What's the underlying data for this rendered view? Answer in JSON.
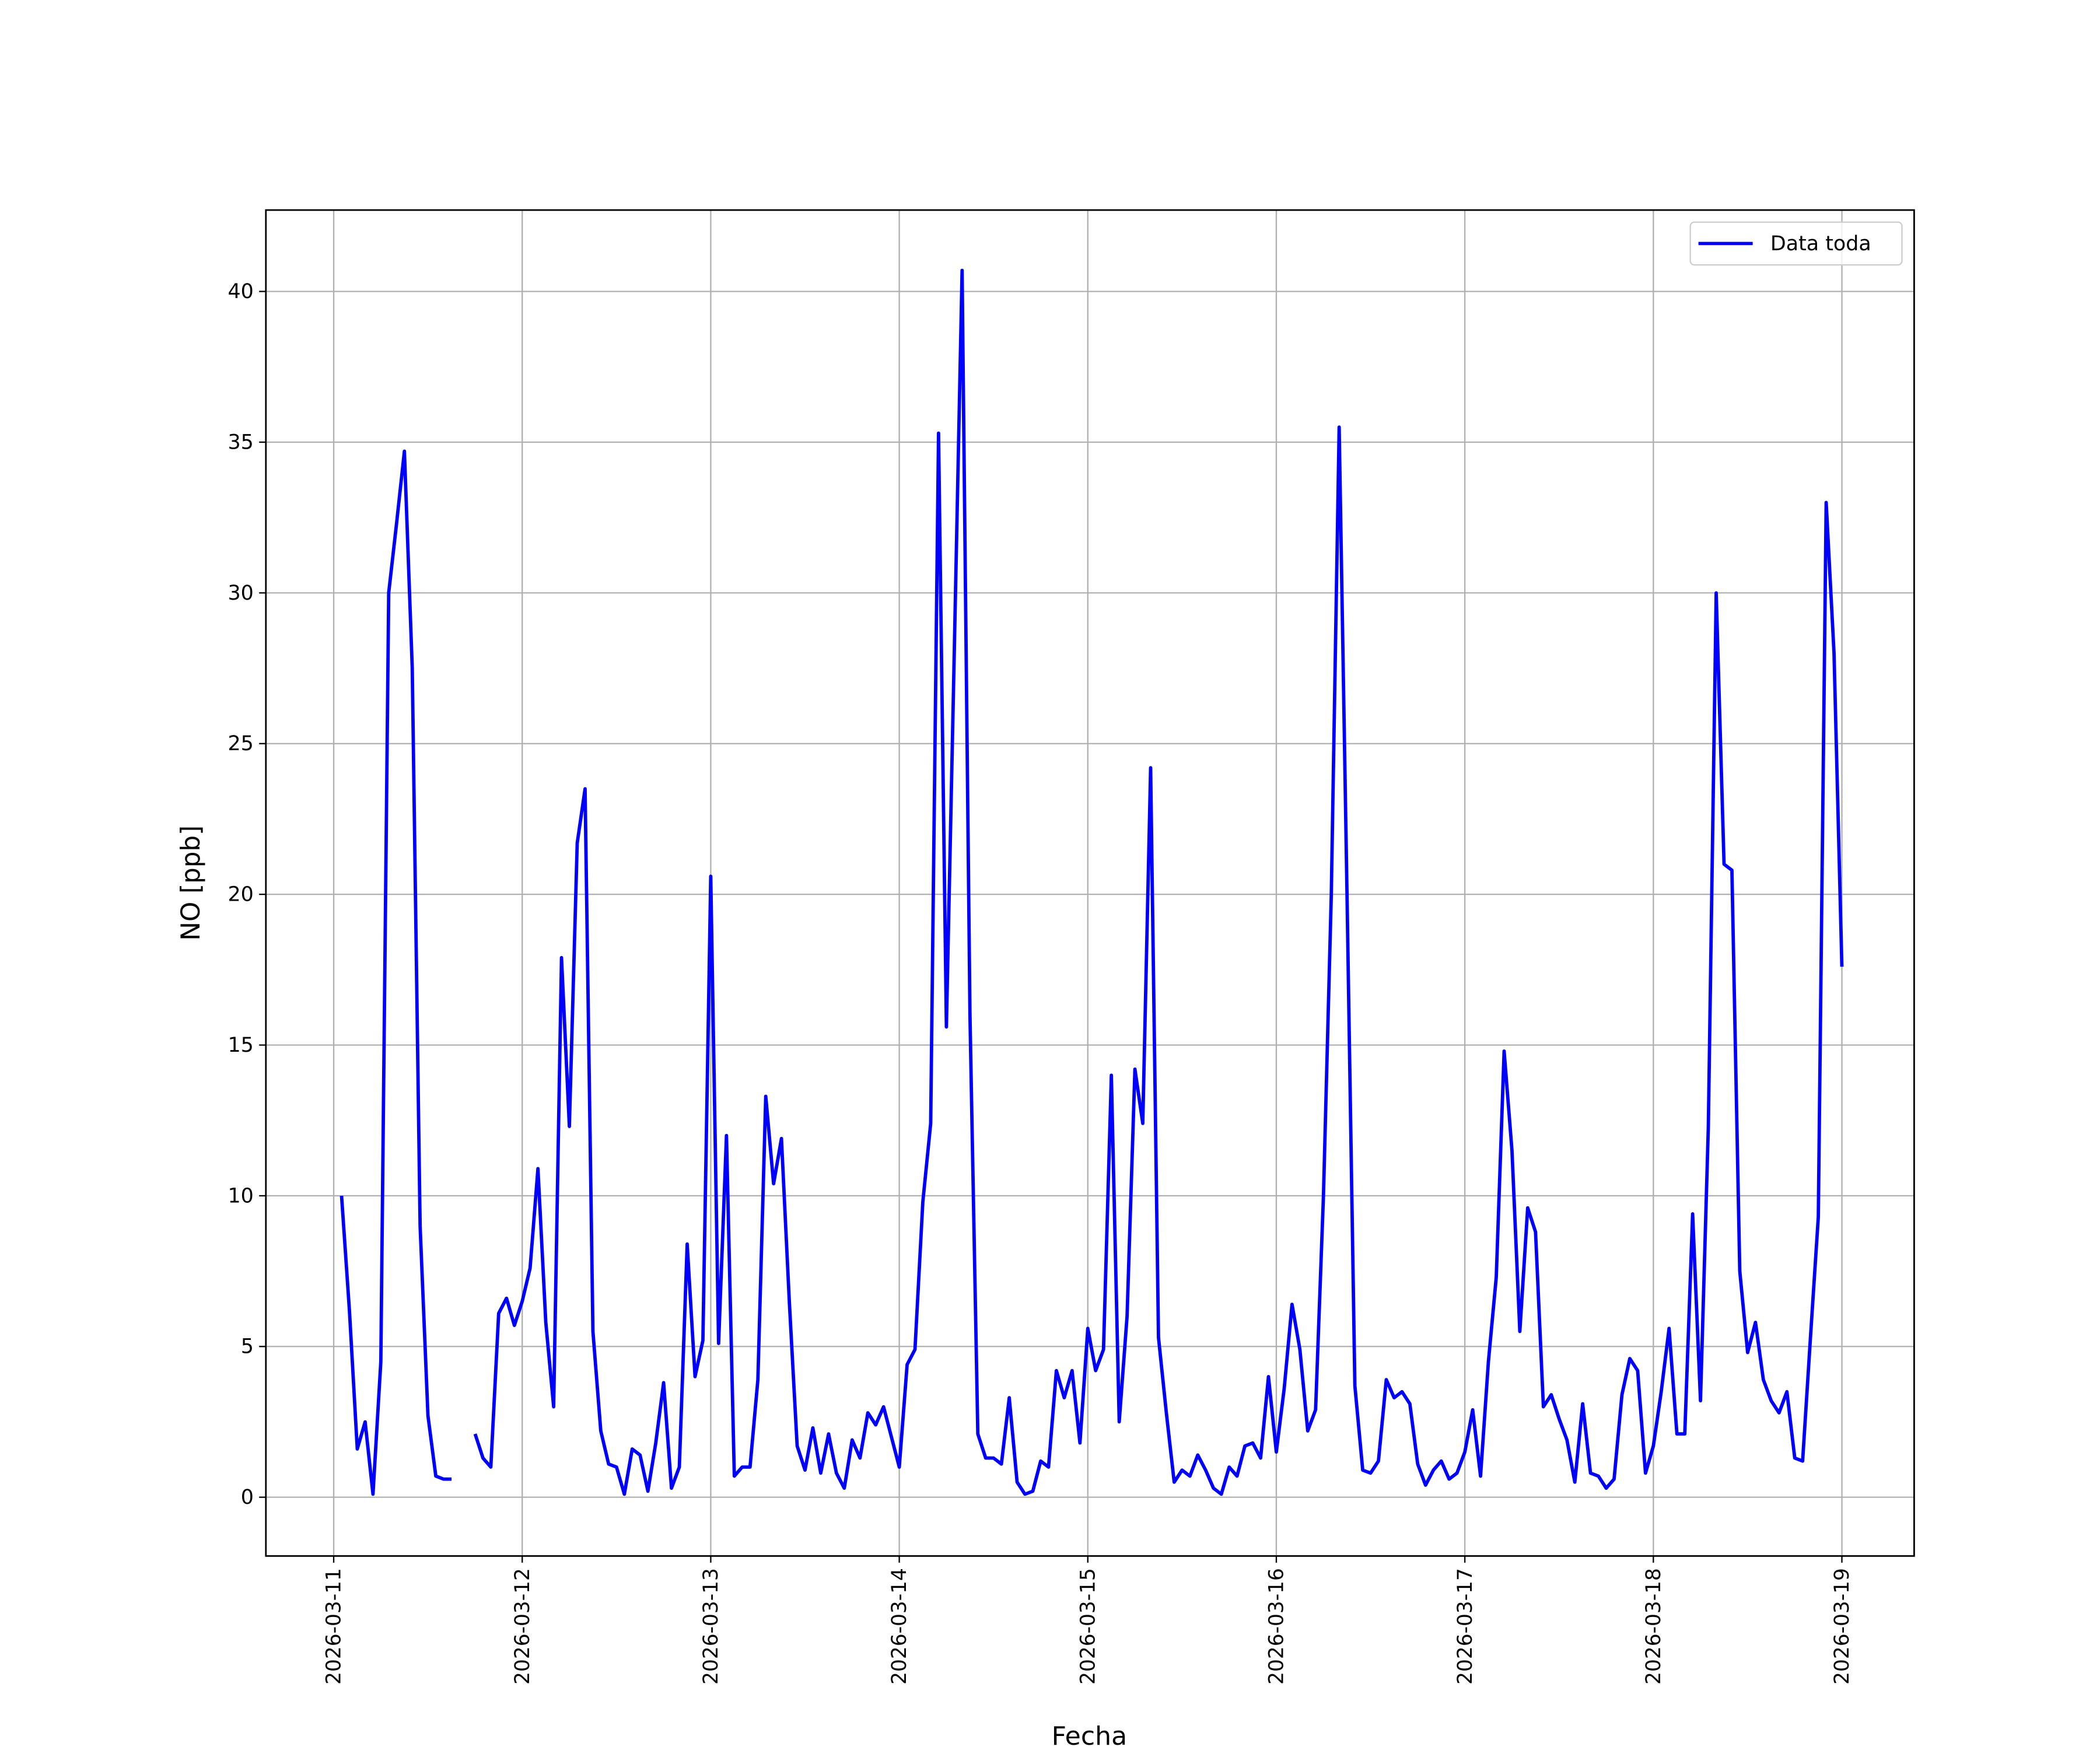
{
  "chart_data": {
    "type": "line",
    "xlabel": "Fecha",
    "ylabel": "NO [ppb]",
    "x": [
      "2026-03-11 01:00",
      "2026-03-11 02:00",
      "2026-03-11 03:00",
      "2026-03-11 04:00",
      "2026-03-11 05:00",
      "2026-03-11 06:00",
      "2026-03-11 07:00",
      "2026-03-11 08:00",
      "2026-03-11 09:00",
      "2026-03-11 10:00",
      "2026-03-11 11:00",
      "2026-03-11 12:00",
      "2026-03-11 13:00",
      "2026-03-11 14:00",
      "2026-03-11 15:00",
      "2026-03-11 16:00",
      "2026-03-11 17:00",
      "2026-03-11 18:00",
      "2026-03-11 19:00",
      "2026-03-11 20:00",
      "2026-03-11 21:00",
      "2026-03-11 22:00",
      "2026-03-11 23:00",
      "2026-03-12 00:00",
      "2026-03-12 01:00",
      "2026-03-12 02:00",
      "2026-03-12 03:00",
      "2026-03-12 04:00",
      "2026-03-12 05:00",
      "2026-03-12 06:00",
      "2026-03-12 07:00",
      "2026-03-12 08:00",
      "2026-03-12 09:00",
      "2026-03-12 10:00",
      "2026-03-12 11:00",
      "2026-03-12 12:00",
      "2026-03-12 13:00",
      "2026-03-12 14:00",
      "2026-03-12 15:00",
      "2026-03-12 16:00",
      "2026-03-12 17:00",
      "2026-03-12 18:00",
      "2026-03-12 19:00",
      "2026-03-12 20:00",
      "2026-03-12 21:00",
      "2026-03-12 22:00",
      "2026-03-12 23:00",
      "2026-03-13 00:00",
      "2026-03-13 01:00",
      "2026-03-13 02:00",
      "2026-03-13 03:00",
      "2026-03-13 04:00",
      "2026-03-13 05:00",
      "2026-03-13 06:00",
      "2026-03-13 07:00",
      "2026-03-13 08:00",
      "2026-03-13 09:00",
      "2026-03-13 10:00",
      "2026-03-13 11:00",
      "2026-03-13 12:00",
      "2026-03-13 13:00",
      "2026-03-13 14:00",
      "2026-03-13 15:00",
      "2026-03-13 16:00",
      "2026-03-13 17:00",
      "2026-03-13 18:00",
      "2026-03-13 19:00",
      "2026-03-13 20:00",
      "2026-03-13 21:00",
      "2026-03-13 22:00",
      "2026-03-13 23:00",
      "2026-03-14 00:00",
      "2026-03-14 01:00",
      "2026-03-14 02:00",
      "2026-03-14 03:00",
      "2026-03-14 04:00",
      "2026-03-14 05:00",
      "2026-03-14 06:00",
      "2026-03-14 07:00",
      "2026-03-14 08:00",
      "2026-03-14 09:00",
      "2026-03-14 10:00",
      "2026-03-14 11:00",
      "2026-03-14 12:00",
      "2026-03-14 13:00",
      "2026-03-14 14:00",
      "2026-03-14 15:00",
      "2026-03-14 16:00",
      "2026-03-14 17:00",
      "2026-03-14 18:00",
      "2026-03-14 19:00",
      "2026-03-14 20:00",
      "2026-03-14 21:00",
      "2026-03-14 22:00",
      "2026-03-14 23:00",
      "2026-03-15 00:00",
      "2026-03-15 01:00",
      "2026-03-15 02:00",
      "2026-03-15 03:00",
      "2026-03-15 04:00",
      "2026-03-15 05:00",
      "2026-03-15 06:00",
      "2026-03-15 07:00",
      "2026-03-15 08:00",
      "2026-03-15 09:00",
      "2026-03-15 10:00",
      "2026-03-15 11:00",
      "2026-03-15 12:00",
      "2026-03-15 13:00",
      "2026-03-15 14:00",
      "2026-03-15 15:00",
      "2026-03-15 16:00",
      "2026-03-15 17:00",
      "2026-03-15 18:00",
      "2026-03-15 19:00",
      "2026-03-15 20:00",
      "2026-03-15 21:00",
      "2026-03-15 22:00",
      "2026-03-15 23:00",
      "2026-03-16 00:00",
      "2026-03-16 01:00",
      "2026-03-16 02:00",
      "2026-03-16 03:00",
      "2026-03-16 04:00",
      "2026-03-16 05:00",
      "2026-03-16 06:00",
      "2026-03-16 07:00",
      "2026-03-16 08:00",
      "2026-03-16 09:00",
      "2026-03-16 10:00",
      "2026-03-16 11:00",
      "2026-03-16 12:00",
      "2026-03-16 13:00",
      "2026-03-16 14:00",
      "2026-03-16 15:00",
      "2026-03-16 16:00",
      "2026-03-16 17:00",
      "2026-03-16 18:00",
      "2026-03-16 19:00",
      "2026-03-16 20:00",
      "2026-03-16 21:00",
      "2026-03-16 22:00",
      "2026-03-16 23:00",
      "2026-03-17 00:00",
      "2026-03-17 01:00",
      "2026-03-17 02:00",
      "2026-03-17 03:00",
      "2026-03-17 04:00",
      "2026-03-17 05:00",
      "2026-03-17 06:00",
      "2026-03-17 07:00",
      "2026-03-17 08:00",
      "2026-03-17 09:00",
      "2026-03-17 10:00",
      "2026-03-17 11:00",
      "2026-03-17 12:00",
      "2026-03-17 13:00",
      "2026-03-17 14:00",
      "2026-03-17 15:00",
      "2026-03-17 16:00",
      "2026-03-17 17:00",
      "2026-03-17 18:00",
      "2026-03-17 19:00",
      "2026-03-17 20:00",
      "2026-03-17 21:00",
      "2026-03-17 22:00",
      "2026-03-17 23:00",
      "2026-03-18 00:00",
      "2026-03-18 01:00",
      "2026-03-18 02:00",
      "2026-03-18 03:00",
      "2026-03-18 04:00",
      "2026-03-18 05:00",
      "2026-03-18 06:00",
      "2026-03-18 07:00",
      "2026-03-18 08:00",
      "2026-03-18 09:00",
      "2026-03-18 10:00",
      "2026-03-18 11:00",
      "2026-03-18 12:00",
      "2026-03-18 13:00",
      "2026-03-18 14:00",
      "2026-03-18 15:00",
      "2026-03-18 16:00",
      "2026-03-18 17:00",
      "2026-03-18 18:00",
      "2026-03-18 19:00",
      "2026-03-18 20:00",
      "2026-03-18 21:00",
      "2026-03-18 22:00",
      "2026-03-18 23:00",
      "2026-03-19 00:00"
    ],
    "series": [
      {
        "name": "Data toda",
        "color": "#0000ff",
        "values": [
          10.0,
          6.2,
          1.6,
          2.5,
          0.1,
          4.5,
          30.0,
          32.3,
          34.7,
          27.5,
          9.0,
          2.7,
          0.7,
          0.6,
          0.6,
          null,
          null,
          2.1,
          1.3,
          1.0,
          6.1,
          6.6,
          5.7,
          6.5,
          7.6,
          10.9,
          5.8,
          3.0,
          17.9,
          12.3,
          21.7,
          23.5,
          5.5,
          2.2,
          1.1,
          1.0,
          0.1,
          1.6,
          1.4,
          0.2,
          1.8,
          3.8,
          0.3,
          1.0,
          8.4,
          4.0,
          5.2,
          20.6,
          5.1,
          12.0,
          0.7,
          1.0,
          1.0,
          3.9,
          13.3,
          10.4,
          11.9,
          6.5,
          1.7,
          0.9,
          2.3,
          0.8,
          2.1,
          0.8,
          0.3,
          1.9,
          1.3,
          2.8,
          2.4,
          3.0,
          2.0,
          1.0,
          4.4,
          4.9,
          9.8,
          12.4,
          35.3,
          15.6,
          28.0,
          40.7,
          16.0,
          2.1,
          1.3,
          1.3,
          1.1,
          3.3,
          0.5,
          0.1,
          0.2,
          1.2,
          1.0,
          4.2,
          3.3,
          4.2,
          1.8,
          5.6,
          4.2,
          4.9,
          14.0,
          2.5,
          6.0,
          14.2,
          12.4,
          24.2,
          5.3,
          2.8,
          0.5,
          0.9,
          0.7,
          1.4,
          0.9,
          0.3,
          0.1,
          1.0,
          0.7,
          1.7,
          1.8,
          1.3,
          4.0,
          1.5,
          3.6,
          6.4,
          4.9,
          2.2,
          2.9,
          10.0,
          20.0,
          35.5,
          20.0,
          3.7,
          0.9,
          0.8,
          1.2,
          3.9,
          3.3,
          3.5,
          3.1,
          1.1,
          0.4,
          0.9,
          1.2,
          0.6,
          0.8,
          1.5,
          2.9,
          0.7,
          4.5,
          7.3,
          14.8,
          11.5,
          5.5,
          9.6,
          8.8,
          3.0,
          3.4,
          2.6,
          1.9,
          0.5,
          3.1,
          0.8,
          0.7,
          0.3,
          0.6,
          3.4,
          4.6,
          4.2,
          0.8,
          1.7,
          3.5,
          5.6,
          2.1,
          2.1,
          9.4,
          3.2,
          12.3,
          30.0,
          21.0,
          20.8,
          7.5,
          4.8,
          5.8,
          3.9,
          3.2,
          2.8,
          3.5,
          1.3,
          1.2,
          5.3,
          9.3,
          33.0,
          28.0,
          17.6
        ]
      }
    ],
    "xlim": [
      "2026-03-10 15:22",
      "2026-03-19 09:12"
    ],
    "xticks": [
      "2026-03-11",
      "2026-03-12",
      "2026-03-13",
      "2026-03-14",
      "2026-03-15",
      "2026-03-16",
      "2026-03-17",
      "2026-03-18",
      "2026-03-19"
    ],
    "ylim": [
      -1.95,
      42.7
    ],
    "yticks": [
      0,
      5,
      10,
      15,
      20,
      25,
      30,
      35,
      40
    ],
    "grid": true,
    "legend": "upper right"
  }
}
